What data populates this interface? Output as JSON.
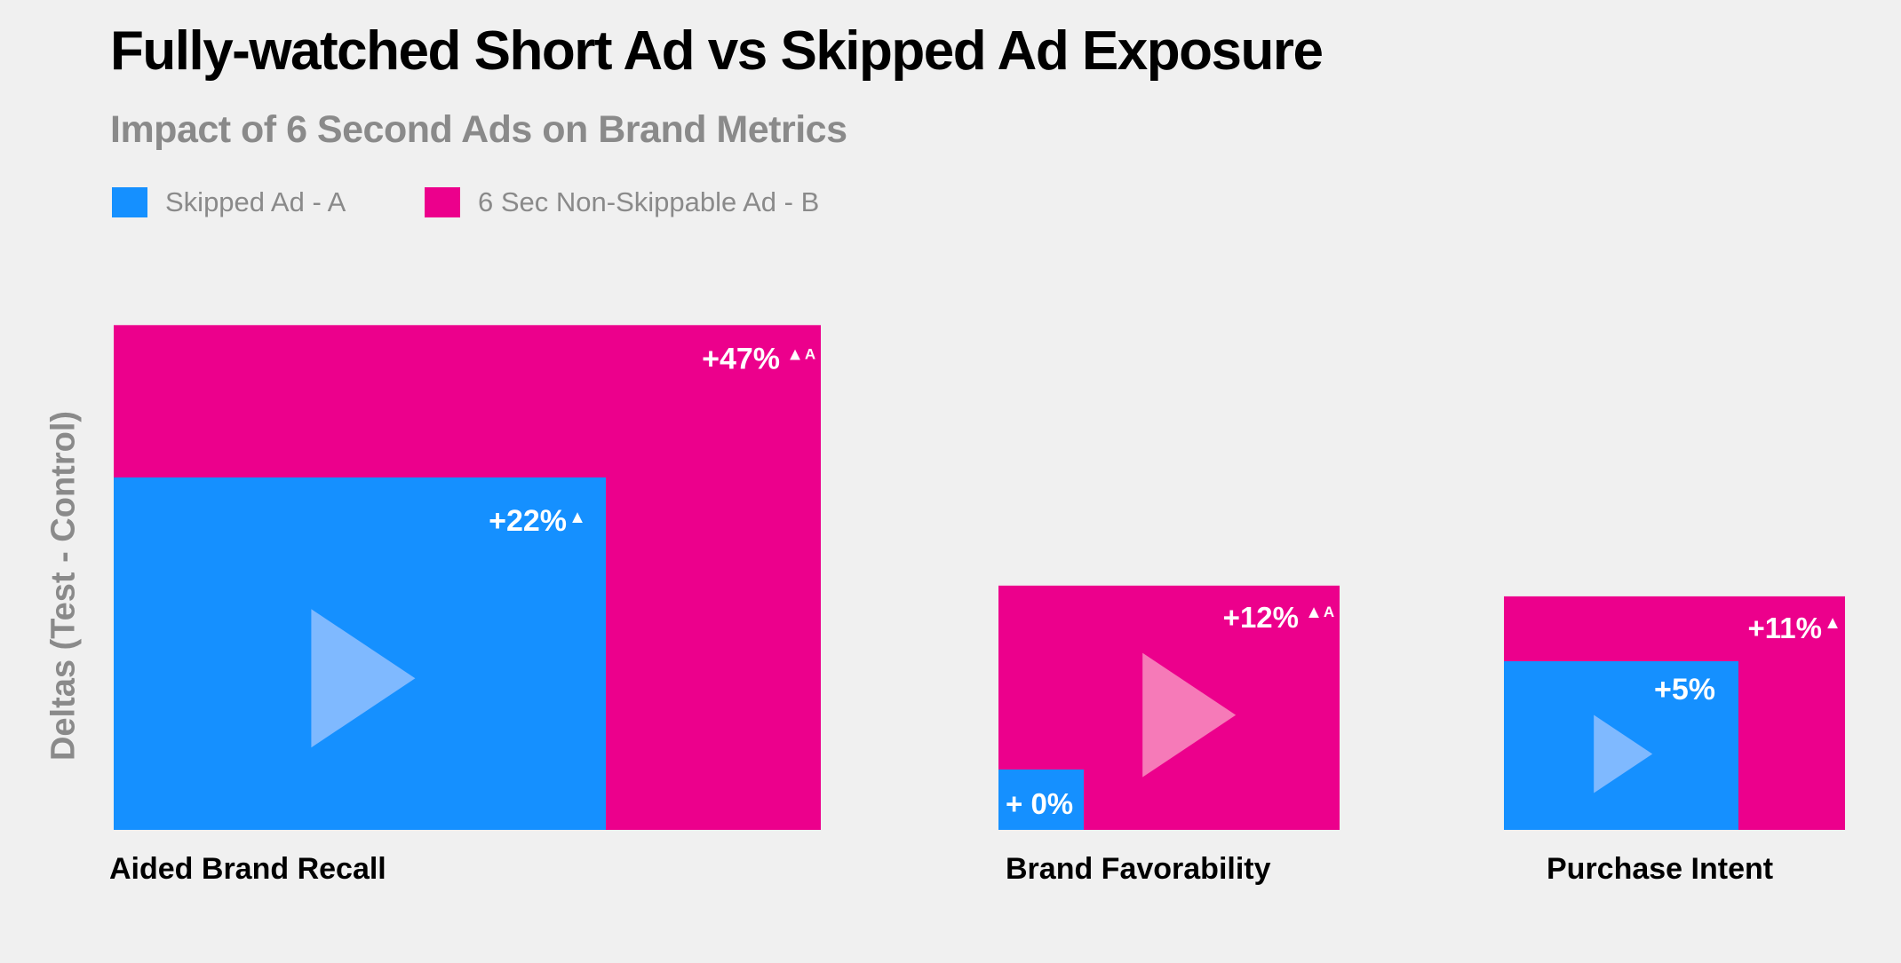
{
  "colors": {
    "skipped": "#1590ff",
    "non_skippable": "#ec008c",
    "skipped_play": "#7fb9ff",
    "non_skippable_play": "#f67ab8",
    "background": "#f0f0f0"
  },
  "chart_data": {
    "type": "bar",
    "title": "Fully-watched Short Ad vs Skipped Ad Exposure",
    "subtitle": "Impact of 6 Second Ads on Brand Metrics",
    "ylabel": "Deltas (Test - Control)",
    "xlabel": "",
    "categories": [
      "Aided Brand Recall",
      "Brand Favorability",
      "Purchase Intent"
    ],
    "series": [
      {
        "name": "Skipped Ad - A",
        "values": [
          22,
          0,
          5
        ],
        "labels": [
          "+22%",
          "+ 0%",
          "+5%"
        ],
        "markers": [
          "▲",
          "",
          ""
        ]
      },
      {
        "name": "6 Sec Non-Skippable Ad - B",
        "values": [
          47,
          12,
          11
        ],
        "labels": [
          "+47%",
          "+12%",
          "+11%"
        ],
        "markers": [
          "▲",
          "▲",
          "▲"
        ],
        "superscripts": [
          "A",
          "A",
          ""
        ]
      }
    ],
    "legend_position": "top-left"
  }
}
